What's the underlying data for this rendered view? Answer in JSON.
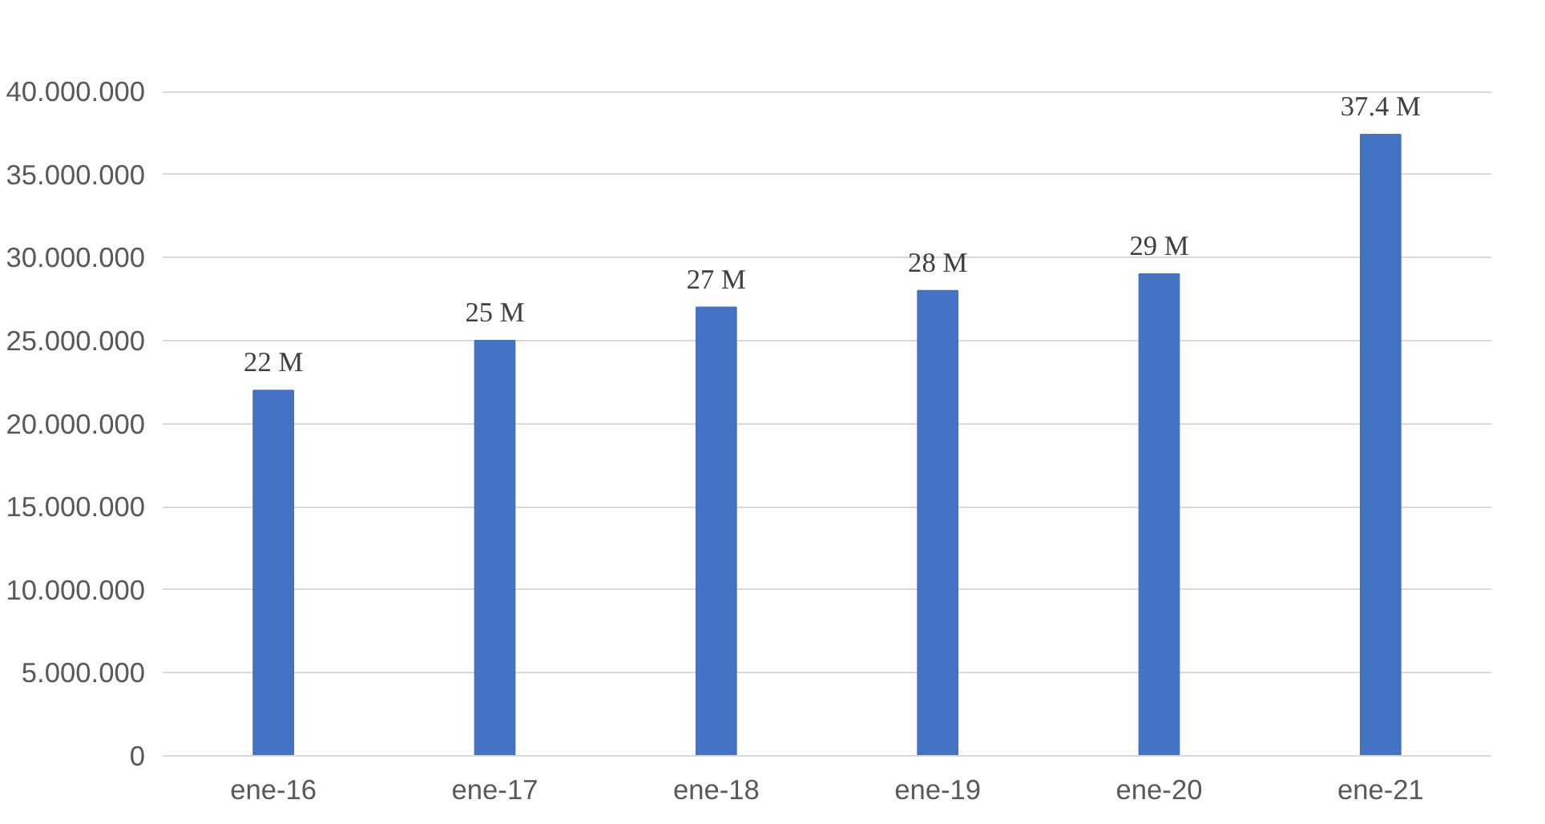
{
  "chart_data": {
    "type": "bar",
    "categories": [
      "ene-16",
      "ene-17",
      "ene-18",
      "ene-19",
      "ene-20",
      "ene-21"
    ],
    "values": [
      22000000,
      25000000,
      27000000,
      28000000,
      29000000,
      37400000
    ],
    "value_labels": [
      "22 M",
      "25 M",
      "27 M",
      "28 M",
      "29 M",
      "37.4 M"
    ],
    "color": "#4472c4",
    "ylim": [
      0,
      40000000
    ],
    "yticks": [
      0,
      {
        "value": 5000000,
        "label": "5.000.000"
      },
      {
        "value": 10000000,
        "label": "10.000.000"
      },
      {
        "value": 15000000,
        "label": "15.000.000"
      },
      {
        "value": 20000000,
        "label": "20.000.000"
      },
      {
        "value": 25000000,
        "label": "25.000.000"
      },
      {
        "value": 30000000,
        "label": "30.000.000"
      },
      {
        "value": 35000000,
        "label": "35.000.000"
      },
      {
        "value": 40000000,
        "label": "40.000.000"
      }
    ],
    "grid": "y"
  }
}
